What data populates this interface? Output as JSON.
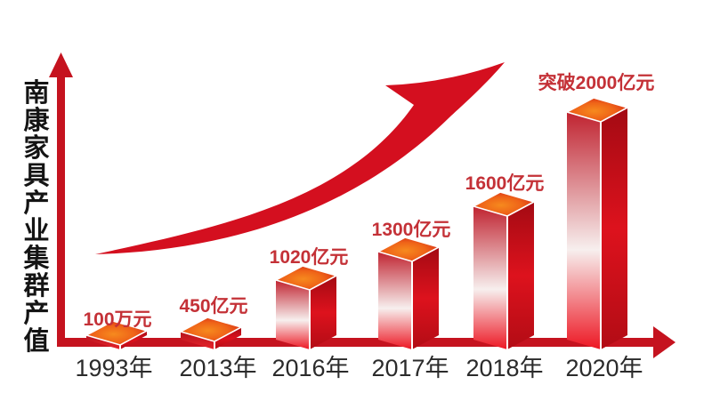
{
  "page": {
    "background": "#ffffff"
  },
  "colors": {
    "axis_red": "#c5131f",
    "swoosh_red": "#d40f1f",
    "value_label_red": "#c43137",
    "year_label_dark": "#2b2b2b",
    "title_black": "#141414",
    "bar_front_top": "#c02330",
    "bar_front_mid": "#f7efee",
    "bar_front_bottom": "#ed1723",
    "bar_front_short_top": "#b5121c",
    "bar_front_short_bottom": "#e8252c",
    "bar_side_dark": "#a30a13",
    "bar_side_mid": "#dd121d",
    "bar_side_end": "#b20c15",
    "bar_top_orange": "#f68a1e",
    "bar_top_mid": "#ef6418",
    "bar_top_edge_red": "#cd1216",
    "edge_highlight": "#ffffff"
  },
  "chart_data": {
    "type": "bar",
    "title": "南康家具产业集群产值",
    "ylabel": "南康家具产业集群产值",
    "xlabel": "",
    "unit": "亿元",
    "categories": [
      "1993年",
      "2013年",
      "2016年",
      "2017年",
      "2018年",
      "2020年"
    ],
    "series": [
      {
        "name": "产值",
        "values": [
          0.01,
          450,
          1020,
          1300,
          1600,
          2000
        ]
      }
    ],
    "value_labels": [
      "100万元",
      "450亿元",
      "1020亿元",
      "1300亿元",
      "1600亿元",
      "突破2000亿元"
    ],
    "grid": "off",
    "legend_position": "none",
    "style_3d": "perspective-boxes",
    "trend_annotation": "upward-curved-arrow"
  }
}
